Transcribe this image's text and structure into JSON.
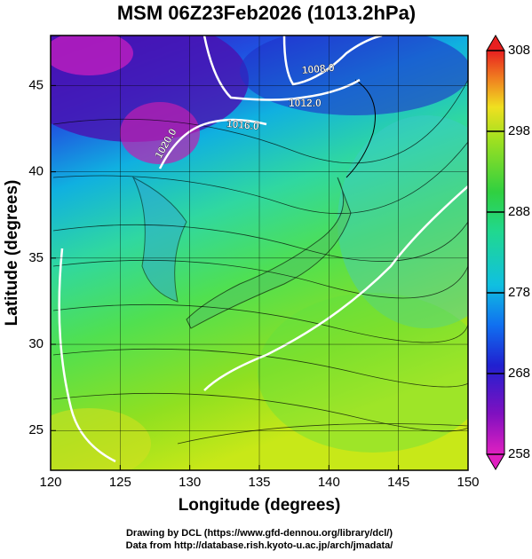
{
  "title": "MSM 06Z23Feb2026 (1013.2hPa)",
  "x_label": "Longitude (degrees)",
  "y_label": "Latitude  (degrees)",
  "xlim": [
    120,
    150
  ],
  "ylim": [
    22.7,
    47.9
  ],
  "xticks": [
    120,
    125,
    130,
    135,
    140,
    145,
    150
  ],
  "yticks": [
    25,
    30,
    35,
    40,
    45
  ],
  "colorbar": {
    "lim": [
      258,
      308
    ],
    "ticks": [
      258,
      268,
      278,
      288,
      298,
      308
    ]
  },
  "contour_labels": [
    "1008.0",
    "1012.0",
    "1016.0",
    "1020.0"
  ],
  "credits": [
    "Drawing by DCL (https://www.gfd-dennou.org/library/dcl/)",
    "Data from http://database.rish.kyoto-u.ac.jp/arch/jmadata/"
  ]
}
